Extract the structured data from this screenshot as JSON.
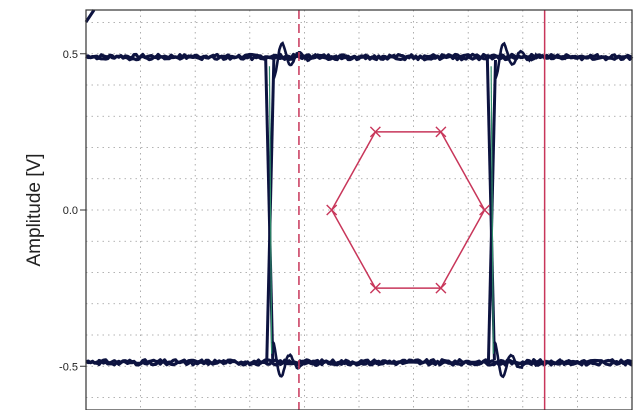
{
  "chart_data": {
    "type": "line",
    "title": "",
    "xlabel": "",
    "ylabel": "Amplitude [V]",
    "y_ticks": [
      "0.5",
      "0.0",
      "-0.5"
    ],
    "y_tick_values": [
      0.5,
      0.0,
      -0.5
    ],
    "ylim": [
      -0.64,
      0.64
    ],
    "xlim": [
      0,
      10
    ],
    "grid": true,
    "legend": "none",
    "series": [
      {
        "description": "eye diagram traces",
        "color": "#0d1340",
        "points": [
          [
            0,
            0.49
          ],
          [
            0.2,
            0.485
          ],
          [
            0.4,
            0.495
          ],
          [
            0.6,
            0.49
          ],
          [
            0.8,
            0.488
          ],
          [
            1.0,
            0.492
          ],
          [
            1.4,
            0.49
          ],
          [
            1.8,
            0.494
          ],
          [
            2.2,
            0.488
          ],
          [
            2.6,
            0.492
          ],
          [
            3.0,
            0.49
          ],
          [
            3.4,
            0.49
          ],
          [
            3.7,
            0.49
          ],
          [
            3.78,
            0.3
          ],
          [
            3.82,
            0.0
          ],
          [
            3.86,
            -0.3
          ],
          [
            3.95,
            -0.49
          ]
        ]
      }
    ],
    "markers": {
      "vertical_lines": [
        {
          "x": 3.9,
          "style": "dashed",
          "color": "#c8365a"
        },
        {
          "x": 8.4,
          "style": "solid",
          "color": "#c8365a"
        }
      ],
      "mask": {
        "shape": "hexagon",
        "color": "#c8365a",
        "vertices": [
          [
            4.5,
            0.0
          ],
          [
            5.3,
            0.25
          ],
          [
            6.5,
            0.25
          ],
          [
            7.3,
            0.0
          ],
          [
            6.5,
            -0.25
          ],
          [
            5.3,
            -0.25
          ]
        ]
      }
    },
    "colors": {
      "trace": "#0d1340",
      "trace_accent": "#2f8f6a",
      "marker": "#c8365a",
      "grid": "#9a9a9a",
      "axis": "#333333"
    }
  }
}
